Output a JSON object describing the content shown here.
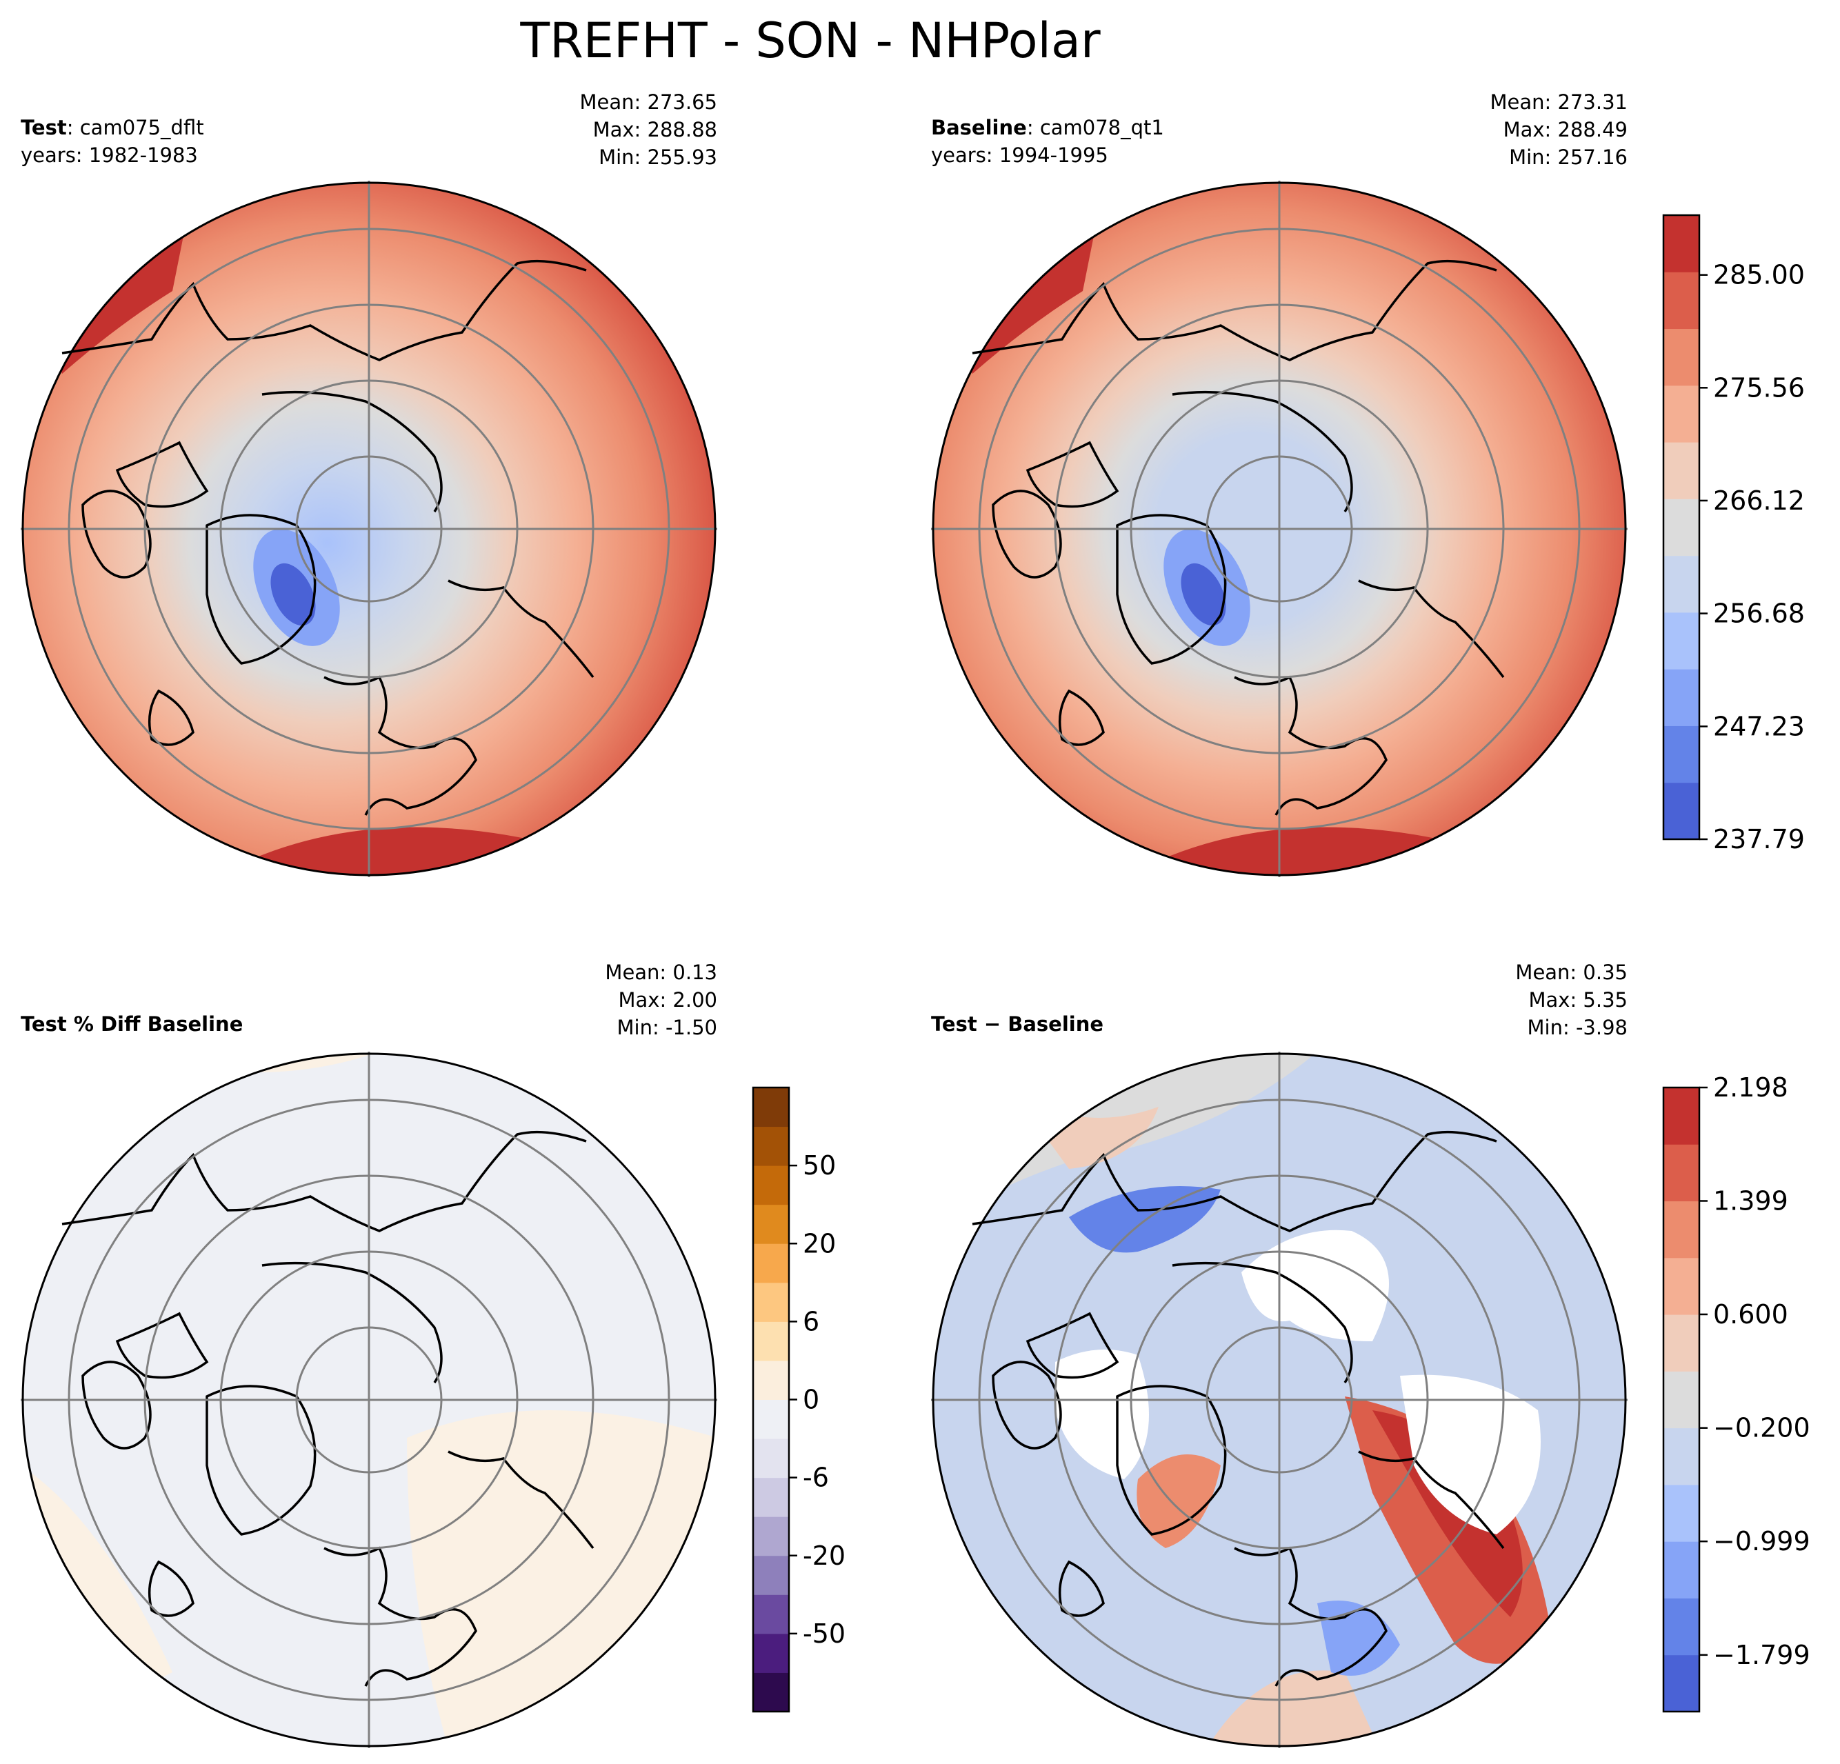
{
  "chart_data": {
    "type": "heatmap",
    "title": "TREFHT - SON - NHPolar",
    "projection": "North Polar Stereographic",
    "panels": [
      {
        "id": "test",
        "label_bold": "Test",
        "label_sep": ": ",
        "label_text": "cam075_dflt",
        "years": "years: 1982-1983",
        "stats": {
          "mean": "Mean: 273.65",
          "max": "Max: 288.88",
          "min": "Min: 255.93"
        }
      },
      {
        "id": "baseline",
        "label_bold": "Baseline",
        "label_sep": ": ",
        "label_text": "cam078_qt1",
        "years": "years: 1994-1995",
        "stats": {
          "mean": "Mean: 273.31",
          "max": "Max: 288.49",
          "min": "Min: 257.16"
        }
      },
      {
        "id": "pctdiff",
        "label_bold": "Test % Diff Baseline",
        "stats": {
          "mean": "Mean:  0.13",
          "max": "Max:  2.00",
          "min": "Min: -1.50"
        }
      },
      {
        "id": "diff",
        "label_bold": "Test − Baseline",
        "stats": {
          "mean": "Mean:  0.35",
          "max": "Max:  5.35",
          "min": "Min: -3.98"
        }
      }
    ],
    "colorbars": {
      "abs": {
        "range": [
          237.79,
          290.0
        ],
        "tick_values": [
          237.79,
          247.23,
          256.68,
          266.12,
          275.56,
          285.0
        ],
        "tick_labels": [
          "237.79",
          "247.23",
          "256.68",
          "266.12",
          "275.56",
          "285.00"
        ],
        "colors": [
          "#4a62d6",
          "#6383e8",
          "#86a4f7",
          "#a9c2fb",
          "#c8d5ee",
          "#dcdcdc",
          "#f0cdbb",
          "#f4af93",
          "#ec8c6e",
          "#dc5e4b",
          "#c4322f"
        ]
      },
      "pct": {
        "ticks_labeled": [
          "-50",
          "-20",
          "-6",
          "0",
          "6",
          "20",
          "50"
        ],
        "colors": [
          "#2d0a4e",
          "#4b1d7e",
          "#6a4aa0",
          "#8e80bb",
          "#afa7d0",
          "#cdcae3",
          "#e3e3ef",
          "#eef0f5",
          "#fbeedd",
          "#fde0b0",
          "#fdc780",
          "#f7a84c",
          "#e08a1e",
          "#c46a0a",
          "#a35206",
          "#7f3b08"
        ]
      },
      "diff": {
        "range": [
          -2.198,
          2.198
        ],
        "tick_values": [
          -1.799,
          -0.999,
          -0.2,
          0.6,
          1.399,
          2.198
        ],
        "tick_labels": [
          "−1.799",
          "−0.999",
          "−0.200",
          "0.600",
          "1.399",
          "2.198"
        ],
        "colors": [
          "#4a62d6",
          "#6383e8",
          "#86a4f7",
          "#a9c2fb",
          "#c8d5ee",
          "#dcdcdc",
          "#f0cdbb",
          "#f4af93",
          "#ec8c6e",
          "#dc5e4b",
          "#c4322f"
        ]
      }
    }
  }
}
